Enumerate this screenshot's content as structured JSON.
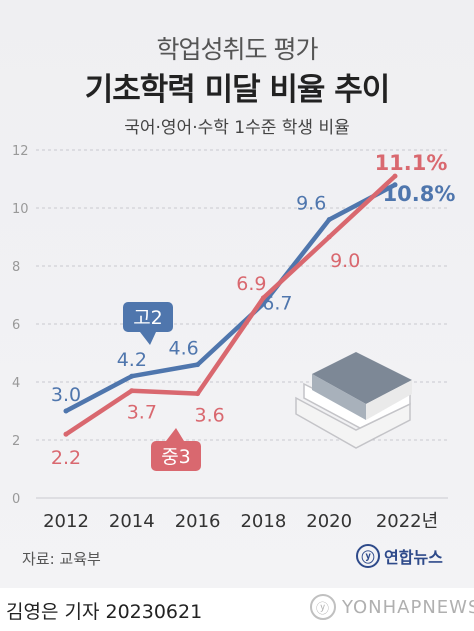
{
  "chart_data": {
    "type": "line",
    "subtitle": "학업성취도 평가",
    "title": "기초학력 미달 비율 추이",
    "caption": "국어·영어·수학 1수준 학생 비율",
    "categories": [
      "2012",
      "2014",
      "2016",
      "2018",
      "2020",
      "2022년"
    ],
    "x": [
      2012,
      2014,
      2016,
      2018,
      2020,
      2022
    ],
    "yticks": [
      "0",
      "2",
      "4",
      "6",
      "8",
      "10",
      "12"
    ],
    "ylim": [
      0,
      12
    ],
    "grid": true,
    "series": [
      {
        "name": "고2",
        "color": "#4f76ad",
        "values": [
          3.0,
          4.2,
          4.6,
          6.7,
          9.6,
          10.8
        ],
        "labels": [
          "3.0",
          "4.2",
          "4.6",
          "6.7",
          "9.6",
          "10.8%"
        ]
      },
      {
        "name": "중3",
        "color": "#d9686f",
        "values": [
          2.2,
          3.7,
          3.6,
          6.9,
          9.0,
          11.1
        ],
        "labels": [
          "2.2",
          "3.7",
          "3.6",
          "6.9",
          "9.0",
          "11.1%"
        ]
      }
    ]
  },
  "footer": {
    "source": "자료: 교육부",
    "logo": "연합뉴스",
    "byline": "김영은 기자  20230621",
    "watermark": "YONHAPNEWS"
  }
}
